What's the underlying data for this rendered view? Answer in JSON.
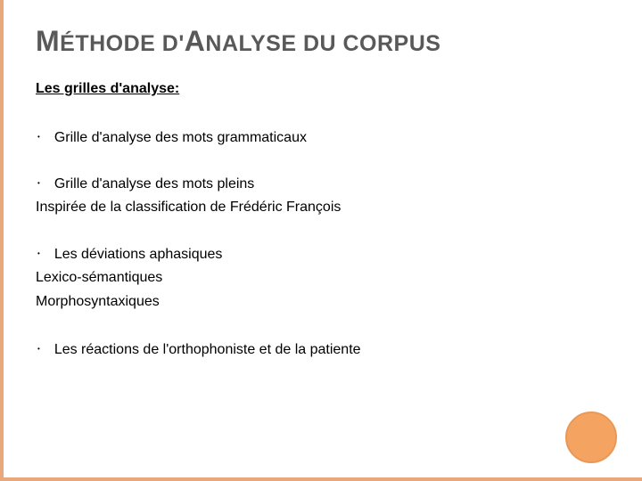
{
  "title": {
    "text": "MÉTHODE D'ANALYSE DU CORPUS",
    "color": "#595959",
    "fontsize": 25,
    "cap_fontsize": 32
  },
  "subtitle": {
    "text": "Les grilles d'analyse:",
    "fontsize": 16,
    "color": "#000000"
  },
  "bullets": [
    {
      "main": "Grille d'analyse des mots grammaticaux",
      "subs": []
    },
    {
      "main": "Grille d'analyse des mots pleins",
      "subs": [
        "Inspirée de la classification de Frédéric François"
      ]
    },
    {
      "main": "Les déviations aphasiques",
      "subs": [
        "Lexico-sémantiques",
        "Morphosyntaxiques"
      ]
    },
    {
      "main": "Les réactions de l'orthophoniste et de la patiente",
      "subs": []
    }
  ],
  "styling": {
    "background_color": "#ffffff",
    "accent_border_color": "#e8a87c",
    "circle_fill": "#f4a460",
    "circle_border": "#e89858",
    "text_color": "#000000",
    "bullet_fontsize": 16,
    "bullet_marker": "•"
  }
}
